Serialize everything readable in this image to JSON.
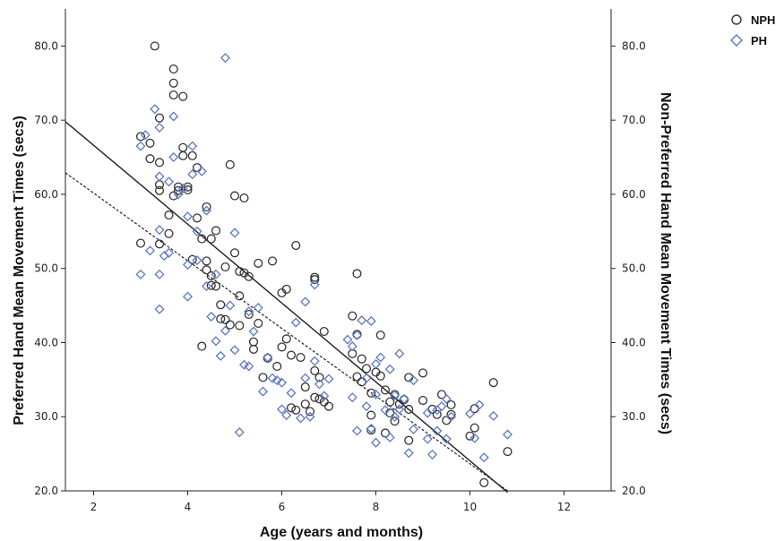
{
  "chart_data": {
    "type": "scatter",
    "title": "",
    "xlabel": "Age (years and months)",
    "ylabel": "Preferred Hand Mean Movement Times (secs)",
    "y2label": "Non-Preferred Hand Mean Movement Times (secs)",
    "xlim": [
      1.4,
      13.0
    ],
    "ylim": [
      20,
      85
    ],
    "x_ticks": [
      2,
      4,
      6,
      8,
      10,
      12
    ],
    "y_ticks": [
      20,
      30,
      40,
      50,
      60,
      70,
      80
    ],
    "y_tick_labels": [
      "20.0",
      "30.0",
      "40.0",
      "50.0",
      "60.0",
      "70.0",
      "80.0"
    ],
    "grid": false,
    "legend_position": "top-right",
    "colors": {
      "NPH": "#333333",
      "PH": "#5b78c2"
    },
    "series": [
      {
        "name": "NPH",
        "marker": "circle",
        "points": [
          [
            3.0,
            67.8
          ],
          [
            3.0,
            53.4
          ],
          [
            3.2,
            64.8
          ],
          [
            3.2,
            66.9
          ],
          [
            3.3,
            80.0
          ],
          [
            3.4,
            70.3
          ],
          [
            3.4,
            64.3
          ],
          [
            3.4,
            61.3
          ],
          [
            3.4,
            60.5
          ],
          [
            3.4,
            53.3
          ],
          [
            3.6,
            57.2
          ],
          [
            3.6,
            54.7
          ],
          [
            3.7,
            76.9
          ],
          [
            3.7,
            75.0
          ],
          [
            3.7,
            73.4
          ],
          [
            3.7,
            59.8
          ],
          [
            3.8,
            61.0
          ],
          [
            3.8,
            60.5
          ],
          [
            3.9,
            66.3
          ],
          [
            3.9,
            65.2
          ],
          [
            3.9,
            73.2
          ],
          [
            4.0,
            61.0
          ],
          [
            4.0,
            60.6
          ],
          [
            4.1,
            65.2
          ],
          [
            4.1,
            51.2
          ],
          [
            4.2,
            63.6
          ],
          [
            4.2,
            56.8
          ],
          [
            4.3,
            54.0
          ],
          [
            4.4,
            58.3
          ],
          [
            4.4,
            51.0
          ],
          [
            4.4,
            49.8
          ],
          [
            4.3,
            39.5
          ],
          [
            4.5,
            54.0
          ],
          [
            4.5,
            49.0
          ],
          [
            4.5,
            47.7
          ],
          [
            4.6,
            55.1
          ],
          [
            4.6,
            47.6
          ],
          [
            4.7,
            45.1
          ],
          [
            4.7,
            43.2
          ],
          [
            4.8,
            50.2
          ],
          [
            4.8,
            43.1
          ],
          [
            4.9,
            64.0
          ],
          [
            4.9,
            42.4
          ],
          [
            5.0,
            59.8
          ],
          [
            5.0,
            52.1
          ],
          [
            5.1,
            49.6
          ],
          [
            5.1,
            46.3
          ],
          [
            5.1,
            42.3
          ],
          [
            5.2,
            59.5
          ],
          [
            5.2,
            49.4
          ],
          [
            5.3,
            48.9
          ],
          [
            5.3,
            43.8
          ],
          [
            5.4,
            40.1
          ],
          [
            5.4,
            39.1
          ],
          [
            5.5,
            50.7
          ],
          [
            5.5,
            42.6
          ],
          [
            5.6,
            35.3
          ],
          [
            5.7,
            37.9
          ],
          [
            5.8,
            51.0
          ],
          [
            5.9,
            36.8
          ],
          [
            6.0,
            46.7
          ],
          [
            6.0,
            39.4
          ],
          [
            6.1,
            47.2
          ],
          [
            6.1,
            40.5
          ],
          [
            6.2,
            38.3
          ],
          [
            6.2,
            31.2
          ],
          [
            6.3,
            53.1
          ],
          [
            6.3,
            30.9
          ],
          [
            6.4,
            38.0
          ],
          [
            6.5,
            34.0
          ],
          [
            6.5,
            31.7
          ],
          [
            6.6,
            30.7
          ],
          [
            6.7,
            48.8
          ],
          [
            6.7,
            48.5
          ],
          [
            6.7,
            36.2
          ],
          [
            6.7,
            32.6
          ],
          [
            6.8,
            35.3
          ],
          [
            6.8,
            32.4
          ],
          [
            6.9,
            41.5
          ],
          [
            6.9,
            32.0
          ],
          [
            7.0,
            31.4
          ],
          [
            7.5,
            43.6
          ],
          [
            7.5,
            38.5
          ],
          [
            7.6,
            49.3
          ],
          [
            7.6,
            41.1
          ],
          [
            7.6,
            35.4
          ],
          [
            7.7,
            37.8
          ],
          [
            7.7,
            34.7
          ],
          [
            7.8,
            36.5
          ],
          [
            7.9,
            33.2
          ],
          [
            7.9,
            30.2
          ],
          [
            7.9,
            28.2
          ],
          [
            8.0,
            36.0
          ],
          [
            8.1,
            41.0
          ],
          [
            8.1,
            35.5
          ],
          [
            8.2,
            33.6
          ],
          [
            8.2,
            27.8
          ],
          [
            8.3,
            32.0
          ],
          [
            8.3,
            30.5
          ],
          [
            8.4,
            33.0
          ],
          [
            8.4,
            29.4
          ],
          [
            8.5,
            31.7
          ],
          [
            8.6,
            32.3
          ],
          [
            8.7,
            35.3
          ],
          [
            8.7,
            31.0
          ],
          [
            8.7,
            26.8
          ],
          [
            9.0,
            35.9
          ],
          [
            9.0,
            32.2
          ],
          [
            9.2,
            31.0
          ],
          [
            9.3,
            30.3
          ],
          [
            9.4,
            33.0
          ],
          [
            9.5,
            29.5
          ],
          [
            9.6,
            31.6
          ],
          [
            9.6,
            30.3
          ],
          [
            10.0,
            27.4
          ],
          [
            10.1,
            31.1
          ],
          [
            10.1,
            28.5
          ],
          [
            10.3,
            21.1
          ],
          [
            10.5,
            34.6
          ],
          [
            10.8,
            25.3
          ]
        ]
      },
      {
        "name": "PH",
        "marker": "diamond",
        "points": [
          [
            3.0,
            66.5
          ],
          [
            3.0,
            49.2
          ],
          [
            3.1,
            68.0
          ],
          [
            3.2,
            52.4
          ],
          [
            3.3,
            71.5
          ],
          [
            3.4,
            69.0
          ],
          [
            3.4,
            62.4
          ],
          [
            3.4,
            55.2
          ],
          [
            3.4,
            49.2
          ],
          [
            3.4,
            44.5
          ],
          [
            3.5,
            51.7
          ],
          [
            3.6,
            61.7
          ],
          [
            3.6,
            52.1
          ],
          [
            3.7,
            70.5
          ],
          [
            3.7,
            65.0
          ],
          [
            3.8,
            60.0
          ],
          [
            3.9,
            60.8
          ],
          [
            4.0,
            57.0
          ],
          [
            4.0,
            50.5
          ],
          [
            4.0,
            46.2
          ],
          [
            4.1,
            66.5
          ],
          [
            4.1,
            62.7
          ],
          [
            4.2,
            55.0
          ],
          [
            4.2,
            51.1
          ],
          [
            4.3,
            63.1
          ],
          [
            4.4,
            57.8
          ],
          [
            4.4,
            47.6
          ],
          [
            4.5,
            43.5
          ],
          [
            4.6,
            49.2
          ],
          [
            4.6,
            40.2
          ],
          [
            4.7,
            38.2
          ],
          [
            4.8,
            78.4
          ],
          [
            4.8,
            41.6
          ],
          [
            4.9,
            45.0
          ],
          [
            5.0,
            54.8
          ],
          [
            5.0,
            39.0
          ],
          [
            5.1,
            27.9
          ],
          [
            5.2,
            37.0
          ],
          [
            5.3,
            44.2
          ],
          [
            5.3,
            36.8
          ],
          [
            5.4,
            41.5
          ],
          [
            5.5,
            44.7
          ],
          [
            5.6,
            33.4
          ],
          [
            5.7,
            38.0
          ],
          [
            5.8,
            35.2
          ],
          [
            5.9,
            34.9
          ],
          [
            6.0,
            31.0
          ],
          [
            6.0,
            34.6
          ],
          [
            6.1,
            30.2
          ],
          [
            6.2,
            33.2
          ],
          [
            6.3,
            42.7
          ],
          [
            6.4,
            29.8
          ],
          [
            6.5,
            45.5
          ],
          [
            6.5,
            35.2
          ],
          [
            6.6,
            30.0
          ],
          [
            6.7,
            47.8
          ],
          [
            6.7,
            37.5
          ],
          [
            6.8,
            34.4
          ],
          [
            6.9,
            32.8
          ],
          [
            7.0,
            35.1
          ],
          [
            7.4,
            40.4
          ],
          [
            7.5,
            39.5
          ],
          [
            7.5,
            32.6
          ],
          [
            7.6,
            28.1
          ],
          [
            7.6,
            41.0
          ],
          [
            7.7,
            43.0
          ],
          [
            7.8,
            35.2
          ],
          [
            7.8,
            31.4
          ],
          [
            7.9,
            42.9
          ],
          [
            7.9,
            28.4
          ],
          [
            8.0,
            37.1
          ],
          [
            8.0,
            33.0
          ],
          [
            8.0,
            26.5
          ],
          [
            8.1,
            38.0
          ],
          [
            8.2,
            30.9
          ],
          [
            8.3,
            27.2
          ],
          [
            8.3,
            36.4
          ],
          [
            8.4,
            32.9
          ],
          [
            8.4,
            30.0
          ],
          [
            8.5,
            38.5
          ],
          [
            8.5,
            31.0
          ],
          [
            8.6,
            32.4
          ],
          [
            8.7,
            25.1
          ],
          [
            8.8,
            34.9
          ],
          [
            8.8,
            28.3
          ],
          [
            9.1,
            30.5
          ],
          [
            9.1,
            27.0
          ],
          [
            9.3,
            30.9
          ],
          [
            9.3,
            28.1
          ],
          [
            9.4,
            31.4
          ],
          [
            9.5,
            32.4
          ],
          [
            9.5,
            27.0
          ],
          [
            9.6,
            30.0
          ],
          [
            10.0,
            30.4
          ],
          [
            10.1,
            27.1
          ],
          [
            10.2,
            31.6
          ],
          [
            10.3,
            24.5
          ],
          [
            10.5,
            30.1
          ],
          [
            10.8,
            27.6
          ],
          [
            9.2,
            24.9
          ]
        ]
      }
    ],
    "fit_lines": [
      {
        "series": "NPH",
        "style": "solid",
        "x": [
          1.4,
          10.8
        ],
        "y": [
          69.8,
          19.8
        ]
      },
      {
        "series": "PH",
        "style": "dashed",
        "x": [
          1.4,
          10.8
        ],
        "y": [
          62.9,
          20.0
        ]
      }
    ]
  }
}
